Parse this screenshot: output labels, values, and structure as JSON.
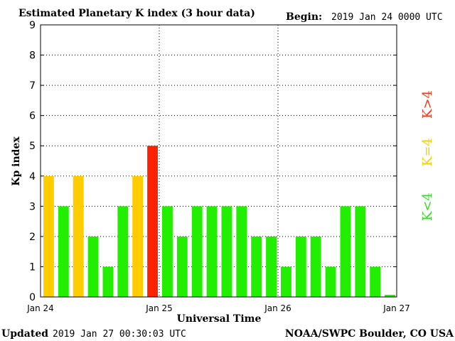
{
  "header": {
    "title": "Estimated Planetary K index (3 hour data)",
    "begin_label": "Begin:",
    "begin_value": "2019 Jan 24 0000 UTC"
  },
  "footer": {
    "updated_label": "Updated",
    "updated_value": "2019 Jan 27 00:30:03 UTC",
    "source": "NOAA/SWPC Boulder, CO USA"
  },
  "legend": {
    "greater": "K>4",
    "equal": "K=4",
    "less": "K<4"
  },
  "colors": {
    "less": "#22ee00",
    "equal": "#ffcc00",
    "greater": "#ff2200",
    "legend_less": "#33dd22",
    "legend_equal": "#ffcc00",
    "legend_greater": "#ff3311"
  },
  "chart_data": {
    "type": "bar",
    "xlabel": "Universal Time",
    "ylabel": "Kp index",
    "ylim": [
      0,
      9
    ],
    "yticks": [
      0,
      1,
      2,
      3,
      4,
      5,
      6,
      7,
      8,
      9
    ],
    "xticks": [
      "Jan 24",
      "Jan 25",
      "Jan 26",
      "Jan 27"
    ],
    "bar_interval_hours": 3,
    "grid": "dotted",
    "values": [
      4,
      3,
      4,
      2,
      1,
      3,
      4,
      5,
      3,
      2,
      3,
      3,
      3,
      3,
      2,
      2,
      1,
      2,
      2,
      1,
      3,
      3,
      1,
      0.07
    ]
  }
}
